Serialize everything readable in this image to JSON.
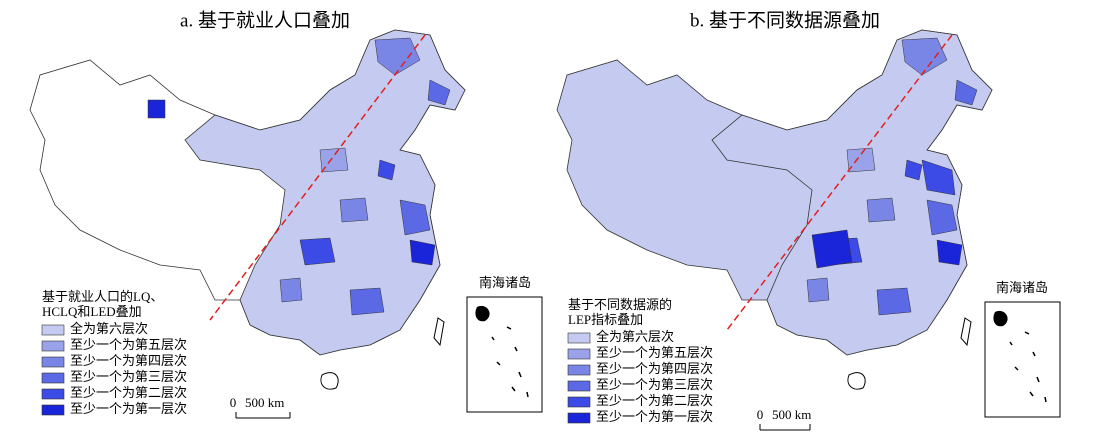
{
  "panels": [
    {
      "title": "a. 基于就业人口叠加",
      "legend": {
        "title_lines": [
          "基于就业人口的LQ、",
          "HCLQ和LED叠加"
        ],
        "items": [
          {
            "label": "全为第六层次",
            "color": "#c5cbf0"
          },
          {
            "label": "至少一个为第五层次",
            "color": "#9aa3ea"
          },
          {
            "label": "至少一个为第四层次",
            "color": "#7a86e6"
          },
          {
            "label": "至少一个为第三层次",
            "color": "#5c69e4"
          },
          {
            "label": "至少一个为第二层次",
            "color": "#3c4ae6"
          },
          {
            "label": "至少一个为第一层次",
            "color": "#1a24d8"
          }
        ]
      },
      "scale_bar": {
        "start": "0",
        "end": "500 km"
      },
      "inset_label": "南海诸岛"
    },
    {
      "title": "b. 基于不同数据源叠加",
      "legend": {
        "title_lines": [
          "基于不同数据源的",
          "LEP指标叠加"
        ],
        "items": [
          {
            "label": "全为第六层次",
            "color": "#c5cbf0"
          },
          {
            "label": "至少一个为第五层次",
            "color": "#9aa3ea"
          },
          {
            "label": "至少一个为第四层次",
            "color": "#7a86e6"
          },
          {
            "label": "至少一个为第三层次",
            "color": "#5c69e4"
          },
          {
            "label": "至少一个为第二层次",
            "color": "#3c4ae6"
          },
          {
            "label": "至少一个为第一层次",
            "color": "#1a24d8"
          }
        ]
      },
      "scale_bar": {
        "start": "0",
        "end": "500 km"
      },
      "inset_label": "南海诸岛"
    }
  ]
}
